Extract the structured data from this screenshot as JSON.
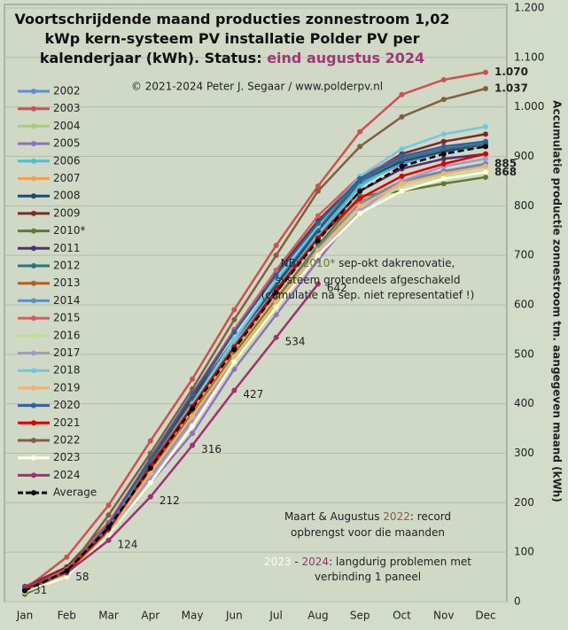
{
  "chart_data": {
    "type": "line",
    "title_lines": [
      [
        {
          "text": "Voortschrijdende maand producties zonnestroom 1,02"
        }
      ],
      [
        {
          "text": "kWp kern-systeem PV installatie Polder PV per"
        }
      ],
      [
        {
          "text": "kalenderjaar (kWh). Status: "
        },
        {
          "text": "eind augustus 2024",
          "color": "#a03878"
        }
      ]
    ],
    "subtitle": "© 2021-2024 Peter J. Segaar / www.polderpv.nl",
    "y_label": "Accumulatie productie zonnestroom tm. aangegeven maand (kWh)",
    "notes": [
      [
        [
          {
            "text": "NB: "
          },
          {
            "text": "2010*",
            "color": "#607830"
          },
          {
            "text": " sep-okt dakrenovatie,"
          }
        ],
        [
          {
            "text": "systeem grotendeels afgeschakeld"
          }
        ],
        [
          {
            "text": "(cumulatie na sep. niet representatief !)"
          }
        ]
      ],
      [
        [
          {
            "text": "Maart & Augustus "
          },
          {
            "text": "2022",
            "color": "#806040"
          },
          {
            "text": ": record"
          }
        ],
        [
          {
            "text": "opbrengst voor die maanden"
          }
        ]
      ],
      [
        [
          {
            "text": "2023",
            "color": "#ffffe0"
          },
          {
            "text": " - "
          },
          {
            "text": "2024",
            "color": "#a03070"
          },
          {
            "text": ": langdurig problemen met"
          }
        ],
        [
          {
            "text": "verbinding 1 paneel"
          }
        ]
      ]
    ],
    "categories": [
      "Jan",
      "Feb",
      "Mar",
      "Apr",
      "May",
      "Jun",
      "Jul",
      "Aug",
      "Sep",
      "Oct",
      "Nov",
      "Dec"
    ],
    "ylim": [
      0,
      1200
    ],
    "yticks": [
      0,
      100,
      200,
      300,
      400,
      500,
      600,
      700,
      800,
      900,
      {
        "value": 1000,
        "label": "1.000"
      },
      {
        "value": 1100,
        "label": "1.100"
      },
      {
        "value": 1200,
        "label": "1.200"
      }
    ],
    "grid": true,
    "series": [
      {
        "name": "2002",
        "color": "#5b8fd0",
        "values": [
          20,
          55,
          150,
          275,
          400,
          520,
          640,
          740,
          845,
          885,
          910,
          925
        ]
      },
      {
        "name": "2003",
        "color": "#d05050",
        "values": [
          25,
          90,
          195,
          325,
          450,
          590,
          720,
          840,
          950,
          1025,
          1055,
          1070
        ],
        "value_labels": [
          null,
          null,
          null,
          null,
          null,
          null,
          null,
          null,
          null,
          null,
          null,
          "1.070"
        ]
      },
      {
        "name": "2004",
        "color": "#a8d070",
        "values": [
          20,
          60,
          140,
          250,
          360,
          490,
          600,
          710,
          800,
          850,
          870,
          880
        ]
      },
      {
        "name": "2005",
        "color": "#9070c0",
        "values": [
          25,
          60,
          135,
          240,
          340,
          470,
          580,
          690,
          795,
          845,
          870,
          885
        ]
      },
      {
        "name": "2006",
        "color": "#50c0d0",
        "values": [
          20,
          55,
          140,
          260,
          390,
          520,
          630,
          740,
          840,
          890,
          910,
          920
        ]
      },
      {
        "name": "2007",
        "color": "#f0a050",
        "values": [
          20,
          55,
          145,
          265,
          385,
          505,
          615,
          720,
          810,
          850,
          870,
          880
        ]
      },
      {
        "name": "2008",
        "color": "#204870",
        "values": [
          25,
          60,
          150,
          285,
          410,
          530,
          640,
          750,
          850,
          890,
          910,
          925
        ]
      },
      {
        "name": "2009",
        "color": "#802828",
        "values": [
          30,
          70,
          160,
          285,
          415,
          545,
          665,
          770,
          855,
          905,
          930,
          945
        ]
      },
      {
        "name": "2010*",
        "color": "#607830",
        "values": [
          15,
          55,
          145,
          260,
          380,
          500,
          610,
          720,
          820,
          830,
          845,
          858
        ]
      },
      {
        "name": "2011",
        "color": "#503070",
        "values": [
          20,
          55,
          145,
          270,
          395,
          515,
          625,
          735,
          830,
          875,
          895,
          905
        ]
      },
      {
        "name": "2012",
        "color": "#307080",
        "values": [
          25,
          60,
          150,
          280,
          405,
          530,
          645,
          755,
          850,
          895,
          915,
          925
        ]
      },
      {
        "name": "2013",
        "color": "#b06020",
        "values": [
          20,
          60,
          145,
          265,
          380,
          495,
          605,
          710,
          800,
          845,
          870,
          885
        ]
      },
      {
        "name": "2014",
        "color": "#6090c0",
        "values": [
          20,
          55,
          140,
          255,
          370,
          495,
          605,
          715,
          805,
          850,
          870,
          885
        ],
        "data_labels": "last"
      },
      {
        "name": "2015",
        "color": "#d06060",
        "values": [
          25,
          65,
          160,
          290,
          420,
          550,
          670,
          780,
          860,
          900,
          920,
          930
        ]
      },
      {
        "name": "2016",
        "color": "#c0e090",
        "values": [
          20,
          55,
          135,
          245,
          360,
          480,
          590,
          700,
          795,
          840,
          860,
          870
        ]
      },
      {
        "name": "2017",
        "color": "#a898c8",
        "values": [
          20,
          55,
          140,
          250,
          365,
          485,
          595,
          700,
          790,
          850,
          880,
          895
        ]
      },
      {
        "name": "2018",
        "color": "#70c8e0",
        "values": [
          20,
          60,
          150,
          275,
          400,
          530,
          650,
          760,
          860,
          915,
          945,
          960
        ]
      },
      {
        "name": "2019",
        "color": "#f8b070",
        "values": [
          20,
          55,
          140,
          260,
          375,
          495,
          605,
          710,
          800,
          845,
          865,
          880
        ]
      },
      {
        "name": "2020",
        "color": "#3060a0",
        "values": [
          25,
          60,
          155,
          290,
          420,
          545,
          660,
          765,
          855,
          900,
          920,
          930
        ]
      },
      {
        "name": "2021",
        "color": "#e00000",
        "values": [
          25,
          60,
          145,
          275,
          395,
          515,
          630,
          735,
          815,
          860,
          885,
          905
        ]
      },
      {
        "name": "2022",
        "color": "#806040",
        "values": [
          20,
          60,
          175,
          300,
          430,
          570,
          700,
          830,
          920,
          980,
          1015,
          1037
        ],
        "value_labels": [
          null,
          null,
          null,
          null,
          null,
          null,
          null,
          null,
          null,
          null,
          null,
          "1.037"
        ]
      },
      {
        "name": "2023",
        "color": "#ffffe0",
        "values": [
          20,
          50,
          135,
          240,
          355,
          485,
          595,
          700,
          785,
          830,
          855,
          868
        ],
        "data_labels": "last"
      },
      {
        "name": "2024",
        "color": "#a03070",
        "values": [
          31,
          58,
          124,
          212,
          316,
          427,
          534,
          642,
          null,
          null,
          null,
          null
        ],
        "data_labels": "all"
      },
      {
        "name": "Average",
        "color": "#000000",
        "dash": true,
        "values": [
          22,
          62,
          150,
          270,
          390,
          510,
          625,
          730,
          830,
          880,
          905,
          920
        ]
      }
    ]
  }
}
